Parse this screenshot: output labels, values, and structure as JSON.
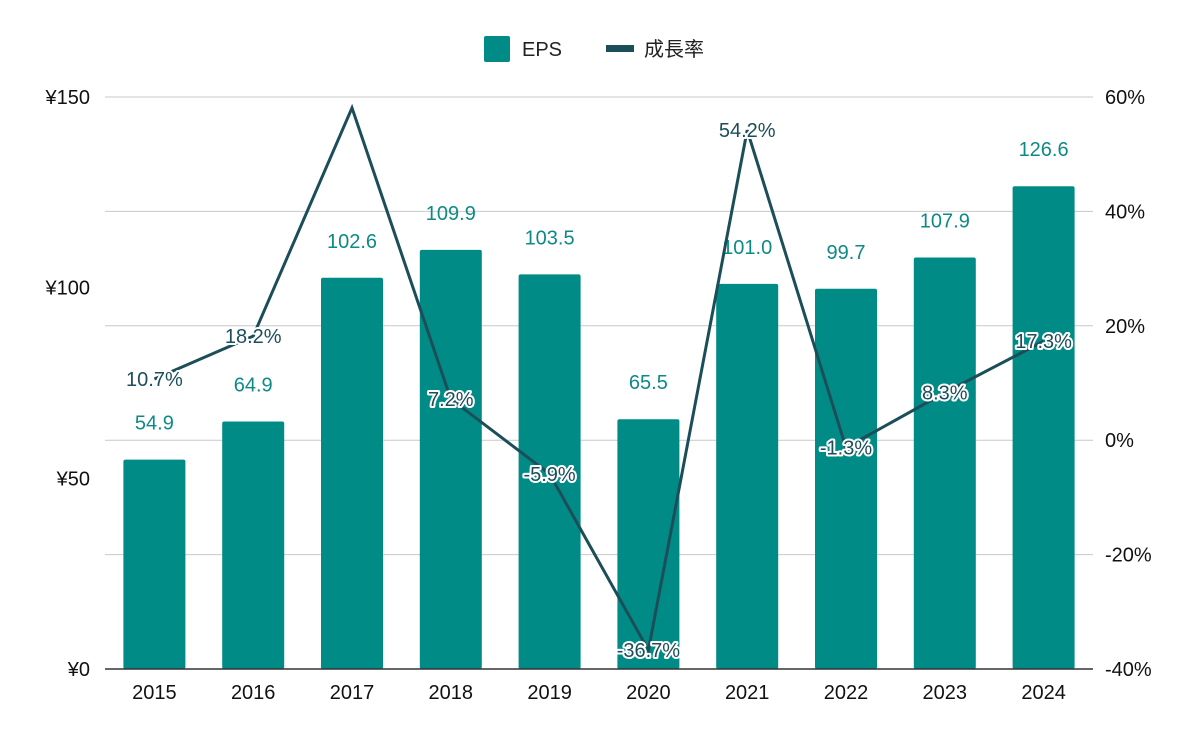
{
  "chart_data": {
    "type": "bar",
    "categories": [
      "2015",
      "2016",
      "2017",
      "2018",
      "2019",
      "2020",
      "2021",
      "2022",
      "2023",
      "2024"
    ],
    "series": [
      {
        "name": "EPS",
        "type": "bar",
        "axis": "left",
        "color": "#008b87",
        "values": [
          54.9,
          64.9,
          102.6,
          109.9,
          103.5,
          65.5,
          101.0,
          99.7,
          107.9,
          126.6
        ],
        "labels": [
          "54.9",
          "64.9",
          "102.6",
          "109.9",
          "103.5",
          "65.5",
          "101.0",
          "99.7",
          "107.9",
          "126.6"
        ]
      },
      {
        "name": "成長率",
        "type": "line",
        "axis": "right",
        "color": "#1c4e5a",
        "values": [
          10.7,
          18.2,
          58.1,
          7.2,
          -5.9,
          -36.7,
          54.2,
          -1.3,
          8.3,
          17.3
        ],
        "labels": [
          "10.7%",
          "18.2%",
          "",
          "7.2%",
          "-5.9%",
          "-36.7%",
          "54.2%",
          "-1.3%",
          "8.3%",
          "17.3%"
        ]
      }
    ],
    "left_axis": {
      "ylim": [
        0,
        150
      ],
      "ticks": [
        0,
        50,
        100,
        150
      ],
      "tick_labels": [
        "¥0",
        "¥50",
        "¥100",
        "¥150"
      ]
    },
    "right_axis": {
      "ylim": [
        -40,
        60
      ],
      "ticks": [
        -40,
        -20,
        0,
        20,
        40,
        60
      ],
      "tick_labels": [
        "-40%",
        "-20%",
        "0%",
        "20%",
        "40%",
        "60%"
      ]
    },
    "grid": true,
    "legend_position": "top-center"
  }
}
